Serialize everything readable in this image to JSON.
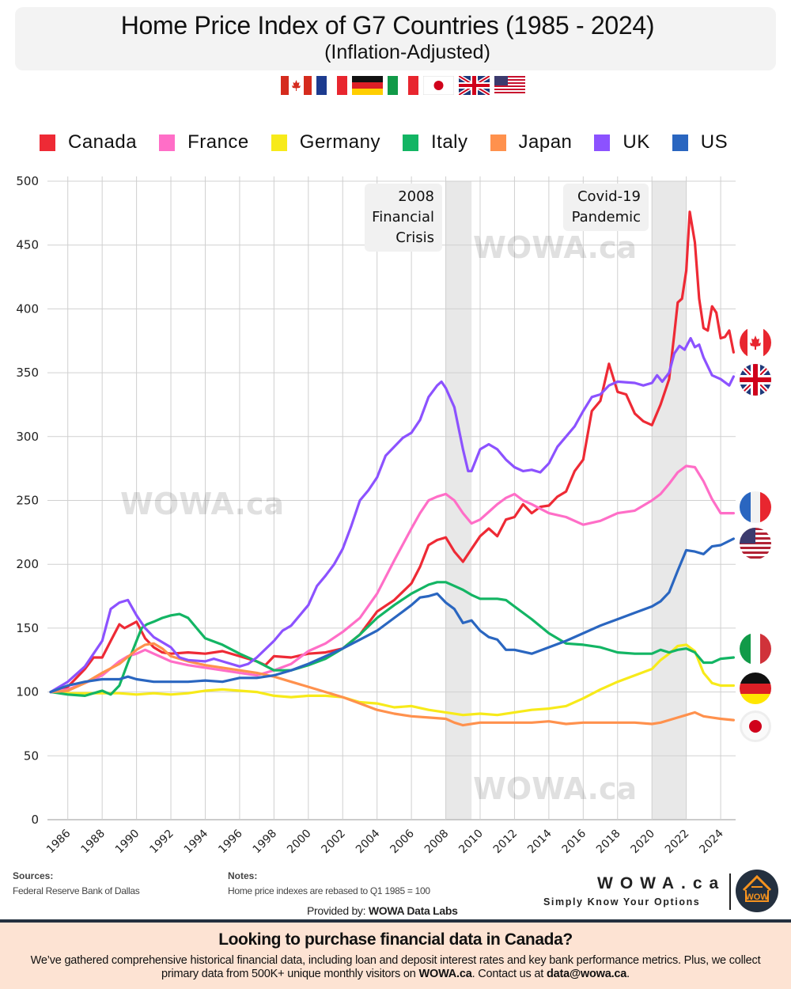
{
  "header": {
    "title": "Home Price Index of G7 Countries (1985 - 2024)",
    "subtitle": "(Inflation-Adjusted)",
    "flag_icons": [
      "canada-flag",
      "france-flag",
      "germany-flag",
      "italy-flag",
      "japan-flag",
      "uk-flag",
      "us-flag"
    ]
  },
  "footer": {
    "sources_heading": "Sources:",
    "sources_text": "Federal Reserve Bank of Dallas",
    "notes_heading": "Notes:",
    "notes_text": "Home price indexes are rebased to  Q1 1985 = 100",
    "provided_prefix": "Provided by:",
    "provided_name": "WOWA Data Labs",
    "brand": "WOWA.ca",
    "tagline": "Simply Know Your Options",
    "logo_text": "WOW"
  },
  "banner": {
    "heading": "Looking to purchase financial data in Canada?",
    "text_1": "We’ve gathered comprehensive historical financial data, including loan and deposit interest rates and key bank performance metrics. Plus, we collect primary data from 500K+ unique monthly visitors on",
    "text_site": "WOWA.ca",
    "text_2": ".  Contact us at",
    "text_email": "data@wowa.ca",
    "text_3": "."
  },
  "watermark": "WOWA.ca",
  "chart_data": {
    "type": "line",
    "title": "Home Price Index of G7 Countries (1985 - 2024)",
    "subtitle": "(Inflation-Adjusted)",
    "xlabel": "",
    "ylabel": "",
    "xlim": [
      1985,
      2025
    ],
    "ylim": [
      0,
      500
    ],
    "yticks": [
      0,
      50,
      100,
      150,
      200,
      250,
      300,
      350,
      400,
      450,
      500
    ],
    "xticks": [
      "1986",
      "1988",
      "1990",
      "1992",
      "1994",
      "1996",
      "1998",
      "2000",
      "2002",
      "2004",
      "2006",
      "2008",
      "2010",
      "2012",
      "2014",
      "2016",
      "2018",
      "2020",
      "2022",
      "2024"
    ],
    "grid": true,
    "legend_position": "top",
    "annotations": [
      {
        "label_lines": [
          "2008",
          "Financial",
          "Crisis"
        ],
        "shaded_range": [
          2008.0,
          2009.5
        ]
      },
      {
        "label_lines": [
          "Covid-19",
          "Pandemic"
        ],
        "shaded_range": [
          2020.0,
          2022.0
        ]
      }
    ],
    "series": [
      {
        "name": "Canada",
        "color": "#ee2a35",
        "flag": "canada-flag",
        "x": [
          1985,
          1986,
          1987,
          1987.5,
          1988,
          1988.5,
          1989,
          1989.3,
          1990,
          1990.5,
          1991,
          1991.5,
          1992,
          1993,
          1994,
          1995,
          1996,
          1997,
          1997.5,
          1998,
          1999,
          2000,
          2001,
          2002,
          2003,
          2004,
          2005,
          2006,
          2006.5,
          2007,
          2007.5,
          2008,
          2008.5,
          2009,
          2009.5,
          2010,
          2010.5,
          2011,
          2011.5,
          2012,
          2012.5,
          2013,
          2013.5,
          2014,
          2014.5,
          2015,
          2015.5,
          2016,
          2016.5,
          2017,
          2017.5,
          2018,
          2018.5,
          2019,
          2019.5,
          2020,
          2020.5,
          2021,
          2021.3,
          2021.5,
          2021.75,
          2022,
          2022.2,
          2022.5,
          2022.75,
          2023,
          2023.25,
          2023.5,
          2023.75,
          2024,
          2024.25,
          2024.5,
          2024.75
        ],
        "values": [
          100,
          104,
          118,
          127,
          127,
          140,
          153,
          150,
          155,
          142,
          135,
          131,
          130,
          131,
          130,
          132,
          128,
          124,
          121,
          128,
          127,
          130,
          131,
          134,
          145,
          163,
          172,
          185,
          198,
          215,
          219,
          221,
          210,
          202,
          212,
          222,
          228,
          222,
          235,
          237,
          247,
          240,
          245,
          246,
          253,
          257,
          273,
          282,
          320,
          328,
          357,
          335,
          333,
          318,
          312,
          309,
          325,
          345,
          380,
          405,
          408,
          430,
          476,
          452,
          408,
          385,
          383,
          402,
          397,
          377,
          378,
          383,
          366
        ]
      },
      {
        "name": "France",
        "color": "#ff6ec7",
        "flag": "france-flag",
        "x": [
          1985,
          1986,
          1987,
          1988,
          1989,
          1989.5,
          1990,
          1990.5,
          1991,
          1991.5,
          1992,
          1993,
          1994,
          1995,
          1996,
          1997,
          1998,
          1999,
          2000,
          2001,
          2002,
          2003,
          2004,
          2005,
          2006,
          2006.5,
          2007,
          2007.5,
          2008,
          2008.5,
          2009,
          2009.5,
          2010,
          2010.5,
          2011,
          2011.5,
          2012,
          2012.5,
          2013,
          2014,
          2015,
          2016,
          2017,
          2018,
          2019,
          2020,
          2020.5,
          2021,
          2021.5,
          2022,
          2022.5,
          2023,
          2023.5,
          2024,
          2024.75
        ],
        "values": [
          100,
          102,
          107,
          113,
          124,
          128,
          130,
          133,
          130,
          127,
          124,
          121,
          119,
          117,
          115,
          113,
          117,
          122,
          132,
          138,
          147,
          158,
          177,
          203,
          228,
          240,
          250,
          253,
          255,
          250,
          240,
          232,
          235,
          241,
          247,
          252,
          255,
          250,
          247,
          240,
          237,
          231,
          234,
          240,
          242,
          250,
          255,
          263,
          272,
          277,
          276,
          265,
          251,
          240,
          240
        ]
      },
      {
        "name": "Germany",
        "color": "#f7ea1a",
        "flag": "germany-flag",
        "x": [
          1985,
          1986,
          1987,
          1988,
          1989,
          1990,
          1991,
          1992,
          1993,
          1994,
          1995,
          1996,
          1997,
          1998,
          1999,
          2000,
          2001,
          2002,
          2003,
          2004,
          2005,
          2006,
          2007,
          2008,
          2009,
          2010,
          2011,
          2012,
          2013,
          2014,
          2015,
          2016,
          2017,
          2018,
          2019,
          2020,
          2020.5,
          2021,
          2021.5,
          2022,
          2022.5,
          2023,
          2023.5,
          2024,
          2024.75
        ],
        "values": [
          100,
          99,
          99,
          99,
          99,
          98,
          99,
          98,
          99,
          101,
          102,
          101,
          100,
          97,
          96,
          97,
          97,
          96,
          92,
          91,
          88,
          89,
          86,
          84,
          82,
          83,
          82,
          84,
          86,
          87,
          89,
          95,
          102,
          108,
          113,
          118,
          125,
          130,
          136,
          137,
          132,
          115,
          107,
          105,
          105
        ]
      },
      {
        "name": "Italy",
        "color": "#13b564",
        "flag": "italy-flag",
        "x": [
          1985,
          1986,
          1987,
          1988,
          1988.5,
          1989,
          1989.5,
          1990,
          1990.3,
          1990.6,
          1991,
          1991.5,
          1992,
          1992.5,
          1993,
          1993.5,
          1994,
          1995,
          1996,
          1997,
          1998,
          1999,
          2000,
          2001,
          2002,
          2003,
          2004,
          2005,
          2006,
          2007,
          2007.5,
          2008,
          2008.5,
          2009,
          2009.5,
          2010,
          2011,
          2011.5,
          2012,
          2013,
          2014,
          2015,
          2016,
          2017,
          2018,
          2019,
          2020,
          2020.5,
          2021,
          2021.5,
          2022,
          2022.5,
          2023,
          2023.5,
          2024,
          2024.75
        ],
        "values": [
          100,
          98,
          97,
          101,
          98,
          105,
          123,
          140,
          150,
          153,
          155,
          158,
          160,
          161,
          158,
          150,
          142,
          137,
          130,
          124,
          117,
          117,
          121,
          126,
          134,
          145,
          158,
          168,
          177,
          184,
          186,
          186,
          183,
          180,
          176,
          173,
          173,
          172,
          167,
          157,
          146,
          138,
          137,
          135,
          131,
          130,
          130,
          133,
          131,
          133,
          134,
          131,
          123,
          123,
          126,
          127
        ]
      },
      {
        "name": "Japan",
        "color": "#ff914d",
        "flag": "japan-flag",
        "x": [
          1985,
          1986,
          1987,
          1988,
          1989,
          1990,
          1990.5,
          1991,
          1991.5,
          1992,
          1993,
          1994,
          1995,
          1996,
          1997,
          1998,
          1999,
          2000,
          2001,
          2002,
          2003,
          2004,
          2005,
          2006,
          2007,
          2008,
          2008.5,
          2009,
          2010,
          2011,
          2012,
          2013,
          2014,
          2015,
          2016,
          2017,
          2018,
          2019,
          2020,
          2020.5,
          2021,
          2021.5,
          2022,
          2022.5,
          2023,
          2023.5,
          2024,
          2024.75
        ],
        "values": [
          100,
          101,
          107,
          115,
          122,
          133,
          137,
          138,
          134,
          128,
          124,
          121,
          119,
          117,
          115,
          112,
          108,
          104,
          100,
          96,
          91,
          86,
          83,
          81,
          80,
          79,
          76,
          74,
          76,
          76,
          76,
          76,
          77,
          75,
          76,
          76,
          76,
          76,
          75,
          76,
          78,
          80,
          82,
          84,
          81,
          80,
          79,
          78
        ]
      },
      {
        "name": "UK",
        "color": "#8c52ff",
        "flag": "uk-flag",
        "x": [
          1985,
          1986,
          1987,
          1988,
          1988.5,
          1989,
          1989.5,
          1990,
          1990.5,
          1991,
          1992,
          1992.5,
          1993,
          1994,
          1994.5,
          1995,
          1996,
          1996.5,
          1997,
          1998,
          1998.5,
          1999,
          2000,
          2000.5,
          2001,
          2001.5,
          2002,
          2002.5,
          2003,
          2003.5,
          2004,
          2004.5,
          2005,
          2005.5,
          2006,
          2006.5,
          2007,
          2007.5,
          2007.75,
          2008,
          2008.5,
          2009,
          2009.3,
          2009.5,
          2010,
          2010.5,
          2011,
          2011.5,
          2012,
          2012.5,
          2013,
          2013.5,
          2014,
          2014.5,
          2015,
          2015.5,
          2016,
          2016.5,
          2017,
          2017.5,
          2018,
          2019,
          2019.5,
          2020,
          2020.3,
          2020.6,
          2021,
          2021.3,
          2021.6,
          2021.9,
          2022.25,
          2022.5,
          2022.75,
          2023,
          2023.5,
          2024,
          2024.5,
          2024.75
        ],
        "values": [
          100,
          108,
          120,
          140,
          165,
          170,
          172,
          160,
          150,
          143,
          135,
          127,
          125,
          124,
          126,
          124,
          120,
          122,
          127,
          140,
          148,
          152,
          168,
          183,
          191,
          200,
          212,
          230,
          250,
          258,
          268,
          285,
          292,
          299,
          303,
          313,
          331,
          340,
          343,
          338,
          323,
          290,
          273,
          273,
          290,
          294,
          290,
          282,
          276,
          273,
          274,
          272,
          279,
          292,
          300,
          308,
          320,
          331,
          333,
          340,
          343,
          342,
          340,
          342,
          348,
          343,
          350,
          365,
          371,
          368,
          377,
          370,
          372,
          362,
          348,
          345,
          340,
          347
        ]
      },
      {
        "name": "US",
        "color": "#2a66c0",
        "flag": "us-flag",
        "x": [
          1985,
          1986,
          1987,
          1988,
          1989,
          1989.5,
          1990,
          1991,
          1992,
          1993,
          1994,
          1995,
          1996,
          1997,
          1998,
          1999,
          2000,
          2001,
          2002,
          2003,
          2004,
          2005,
          2006,
          2006.5,
          2007,
          2007.5,
          2008,
          2008.5,
          2009,
          2009.5,
          2010,
          2010.5,
          2011,
          2011.5,
          2012,
          2013,
          2014,
          2015,
          2016,
          2017,
          2018,
          2019,
          2020,
          2020.5,
          2021,
          2021.5,
          2022,
          2022.5,
          2023,
          2023.5,
          2024,
          2024.75
        ],
        "values": [
          100,
          105,
          108,
          110,
          110,
          112,
          110,
          108,
          108,
          108,
          109,
          108,
          111,
          111,
          113,
          117,
          122,
          128,
          134,
          141,
          148,
          158,
          168,
          174,
          175,
          177,
          170,
          165,
          154,
          156,
          148,
          143,
          141,
          133,
          133,
          130,
          135,
          140,
          146,
          152,
          157,
          162,
          167,
          171,
          178,
          195,
          211,
          210,
          208,
          214,
          215,
          220
        ]
      }
    ]
  }
}
